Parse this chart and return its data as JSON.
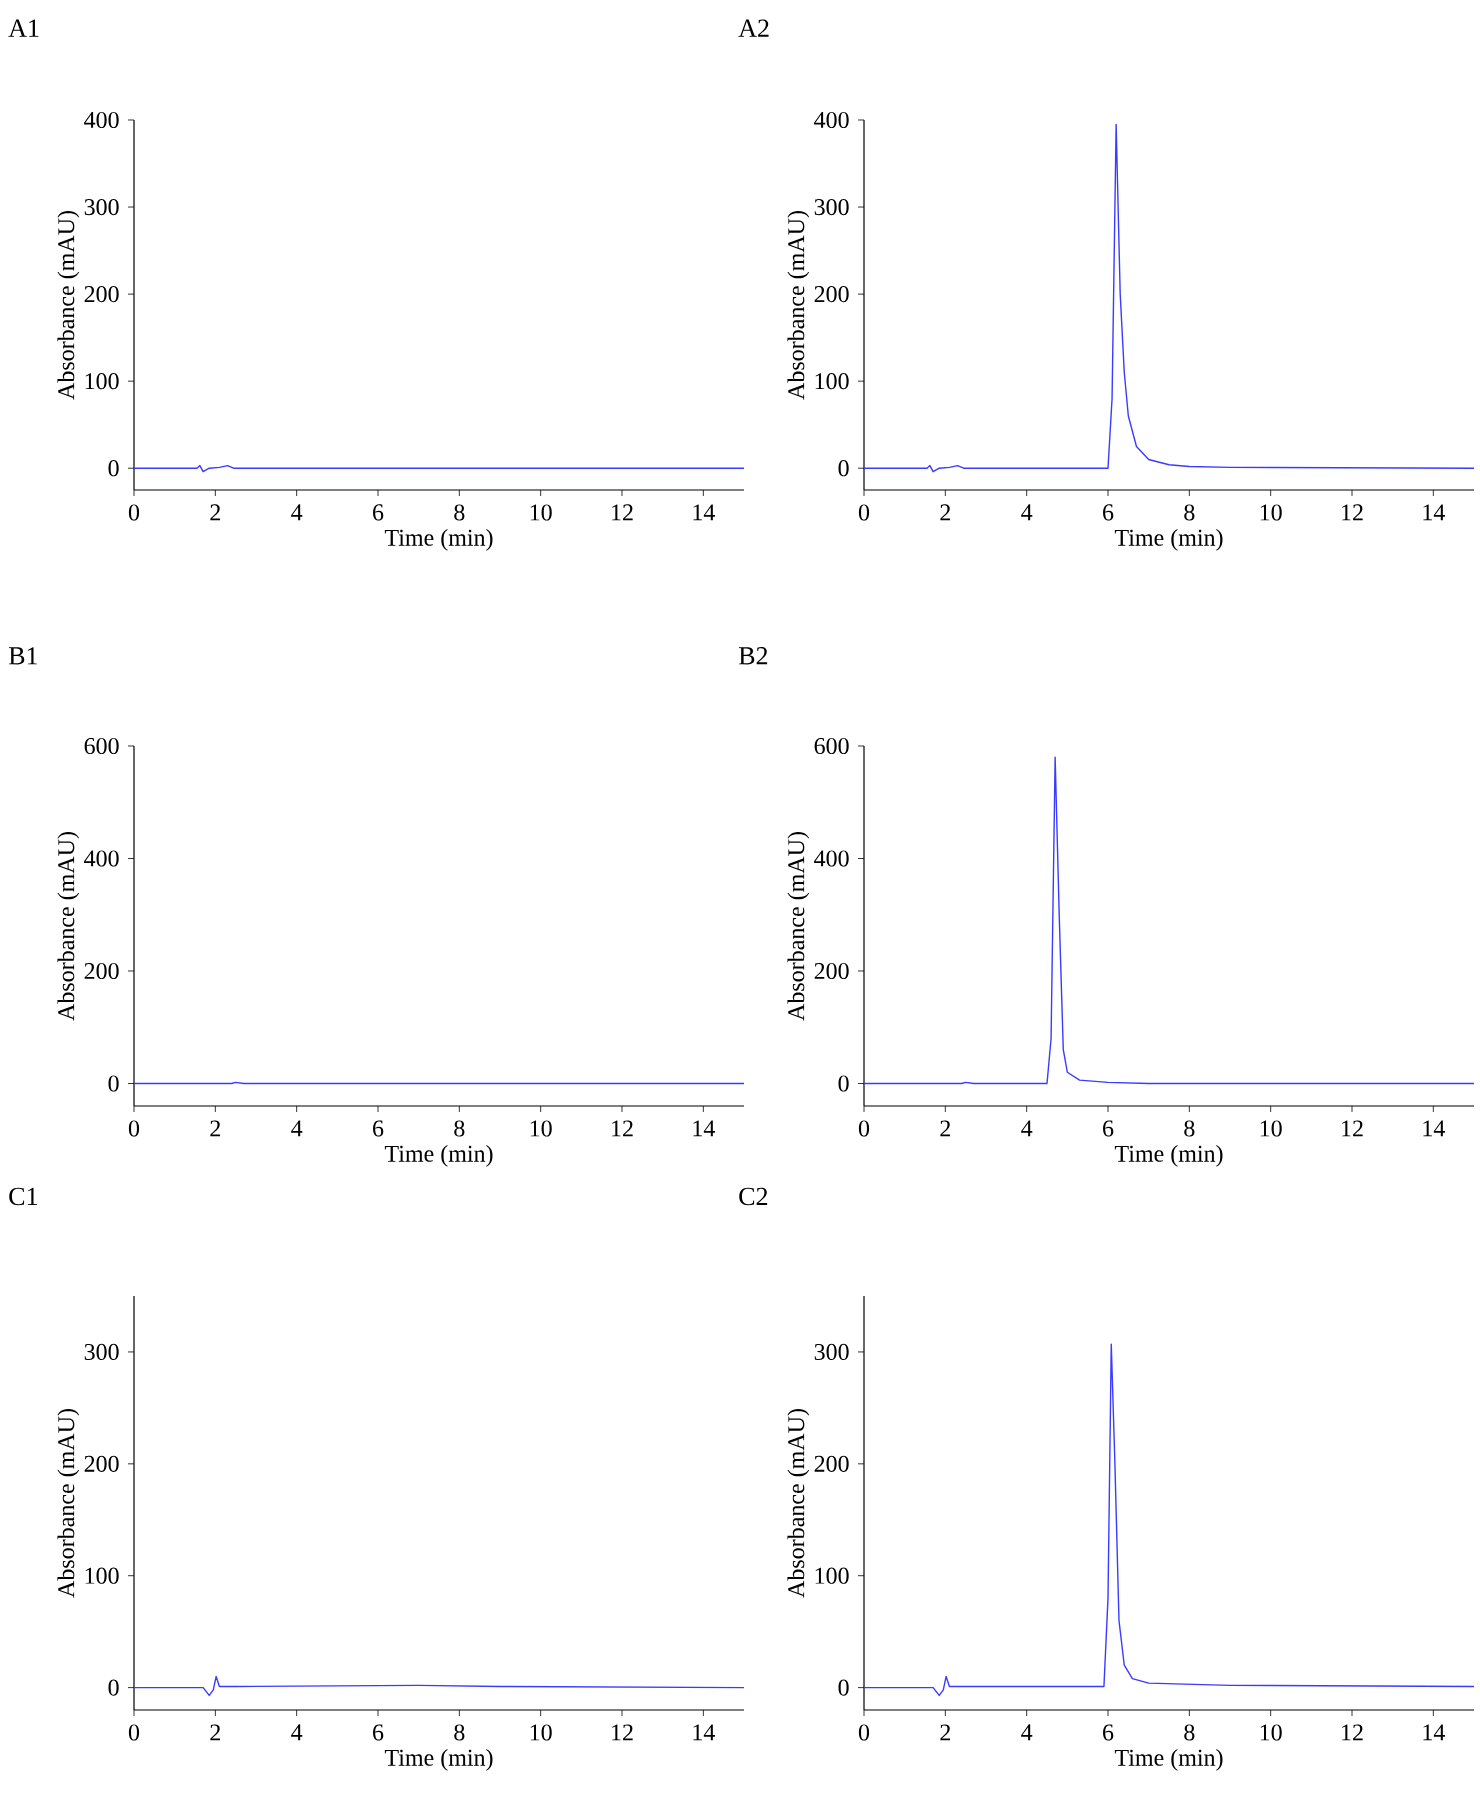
{
  "chart_data": [
    {
      "type": "line",
      "title": "A1",
      "xlabel": "Time (min)",
      "ylabel": "Absorbance (mAU)",
      "xlim": [
        0,
        15
      ],
      "ylim": [
        -25,
        400
      ],
      "xticks": [
        0,
        2,
        4,
        6,
        8,
        10,
        12,
        14
      ],
      "yticks": [
        0,
        100,
        200,
        300,
        400
      ],
      "x": [
        0,
        1.55,
        1.62,
        1.7,
        1.85,
        2.1,
        2.3,
        2.45,
        15
      ],
      "series": [
        {
          "color": "#3b3bff",
          "values": [
            0,
            0,
            3,
            -4,
            0,
            1,
            3,
            0,
            0
          ]
        }
      ]
    },
    {
      "type": "line",
      "title": "A2",
      "xlabel": "Time (min)",
      "ylabel": "Absorbance (mAU)",
      "xlim": [
        0,
        15
      ],
      "ylim": [
        -25,
        400
      ],
      "xticks": [
        0,
        2,
        4,
        6,
        8,
        10,
        12,
        14
      ],
      "yticks": [
        0,
        100,
        200,
        300,
        400
      ],
      "x": [
        0,
        1.55,
        1.62,
        1.7,
        1.85,
        2.1,
        2.3,
        2.45,
        6.0,
        6.1,
        6.2,
        6.3,
        6.4,
        6.5,
        6.7,
        7.0,
        7.5,
        8,
        9,
        15
      ],
      "series": [
        {
          "color": "#3b3bff",
          "values": [
            0,
            0,
            3,
            -4,
            0,
            1,
            3,
            0,
            0,
            80,
            395,
            200,
            110,
            60,
            25,
            10,
            4,
            2,
            1,
            0
          ]
        }
      ]
    },
    {
      "type": "line",
      "title": "B1",
      "xlabel": "Time (min)",
      "ylabel": "Absorbance (mAU)",
      "xlim": [
        0,
        15
      ],
      "ylim": [
        -40,
        600
      ],
      "xticks": [
        0,
        2,
        4,
        6,
        8,
        10,
        12,
        14
      ],
      "yticks": [
        0,
        200,
        400,
        600
      ],
      "x": [
        0,
        2.4,
        2.5,
        2.7,
        15
      ],
      "series": [
        {
          "color": "#3b3bff",
          "values": [
            0,
            0,
            2,
            0,
            0
          ]
        }
      ]
    },
    {
      "type": "line",
      "title": "B2",
      "xlabel": "Time (min)",
      "ylabel": "Absorbance (mAU)",
      "xlim": [
        0,
        15
      ],
      "ylim": [
        -40,
        600
      ],
      "xticks": [
        0,
        2,
        4,
        6,
        8,
        10,
        12,
        14
      ],
      "yticks": [
        0,
        200,
        400,
        600
      ],
      "x": [
        0,
        2.4,
        2.5,
        2.7,
        4.5,
        4.6,
        4.7,
        4.8,
        4.9,
        5.0,
        5.3,
        6,
        7,
        15
      ],
      "series": [
        {
          "color": "#3b3bff",
          "values": [
            0,
            0,
            2,
            0,
            0,
            80,
            580,
            300,
            60,
            20,
            6,
            2,
            0,
            0
          ]
        }
      ]
    },
    {
      "type": "line",
      "title": "C1",
      "xlabel": "Time (min)",
      "ylabel": "Absorbance (mAU)",
      "xlim": [
        0,
        15
      ],
      "ylim": [
        -20,
        350
      ],
      "xticks": [
        0,
        2,
        4,
        6,
        8,
        10,
        12,
        14
      ],
      "yticks": [
        0,
        100,
        200,
        300
      ],
      "x": [
        0,
        1.7,
        1.85,
        1.95,
        2.02,
        2.1,
        2.5,
        7,
        9,
        15
      ],
      "series": [
        {
          "color": "#3b3bff",
          "values": [
            0,
            0,
            -7,
            -2,
            10,
            1,
            1,
            2,
            1,
            0
          ]
        }
      ]
    },
    {
      "type": "line",
      "title": "C2",
      "xlabel": "Time (min)",
      "ylabel": "Absorbance (mAU)",
      "xlim": [
        0,
        15
      ],
      "ylim": [
        -20,
        350
      ],
      "xticks": [
        0,
        2,
        4,
        6,
        8,
        10,
        12,
        14
      ],
      "yticks": [
        0,
        100,
        200,
        300
      ],
      "x": [
        0,
        1.7,
        1.85,
        1.95,
        2.02,
        2.1,
        2.5,
        5.9,
        6.0,
        6.08,
        6.17,
        6.27,
        6.4,
        6.6,
        7,
        9,
        15
      ],
      "series": [
        {
          "color": "#3b3bff",
          "values": [
            0,
            0,
            -7,
            -2,
            10,
            1,
            1,
            1,
            80,
            307,
            200,
            60,
            20,
            8,
            4,
            2,
            1
          ]
        }
      ]
    }
  ]
}
